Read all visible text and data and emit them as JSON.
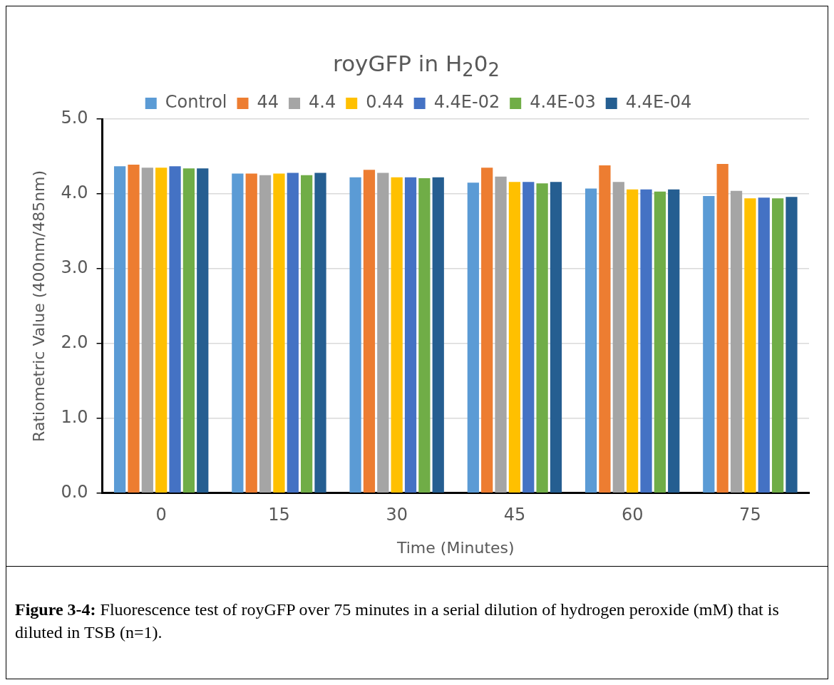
{
  "chart_data": {
    "type": "bar",
    "title": "royGFP in H$_{2}$0$_{2}$",
    "xlabel": "Time (Minutes)",
    "ylabel": "Ratiometric Value (400nm/485nm)",
    "categories": [
      "0",
      "15",
      "30",
      "45",
      "60",
      "75"
    ],
    "series": [
      {
        "name": "Control",
        "color": "#5b9bd5",
        "values": [
          4.37,
          4.27,
          4.22,
          4.15,
          4.07,
          3.97
        ]
      },
      {
        "name": "44",
        "color": "#ed7d31",
        "values": [
          4.39,
          4.27,
          4.32,
          4.35,
          4.38,
          4.4
        ]
      },
      {
        "name": "4.4",
        "color": "#a5a5a5",
        "values": [
          4.35,
          4.25,
          4.28,
          4.23,
          4.16,
          4.04
        ]
      },
      {
        "name": "0.44",
        "color": "#ffc000",
        "values": [
          4.35,
          4.27,
          4.22,
          4.16,
          4.06,
          3.94
        ]
      },
      {
        "name": "4.4E-02",
        "color": "#4472c4",
        "values": [
          4.37,
          4.28,
          4.22,
          4.16,
          4.06,
          3.95
        ]
      },
      {
        "name": "4.4E-03",
        "color": "#70ad47",
        "values": [
          4.34,
          4.25,
          4.21,
          4.14,
          4.03,
          3.94
        ]
      },
      {
        "name": "4.4E-04",
        "color": "#255e91",
        "values": [
          4.34,
          4.28,
          4.22,
          4.16,
          4.06,
          3.96
        ]
      }
    ],
    "ylim": [
      0,
      5
    ],
    "yticks": [
      {
        "value": 0,
        "label": "0.0"
      },
      {
        "value": 1,
        "label": "1.0"
      },
      {
        "value": 2,
        "label": "2.0"
      },
      {
        "value": 3,
        "label": "3.0"
      },
      {
        "value": 4,
        "label": "4.0"
      },
      {
        "value": 5,
        "label": "5.0"
      }
    ],
    "grid": "y",
    "legend": "top",
    "annotations": [
      "**Figure 3-4:** Fluorescence test of royGFP over 75 minutes in a serial dilution of hydrogen peroxide (mM) that is diluted in TSB (n=1)."
    ]
  }
}
